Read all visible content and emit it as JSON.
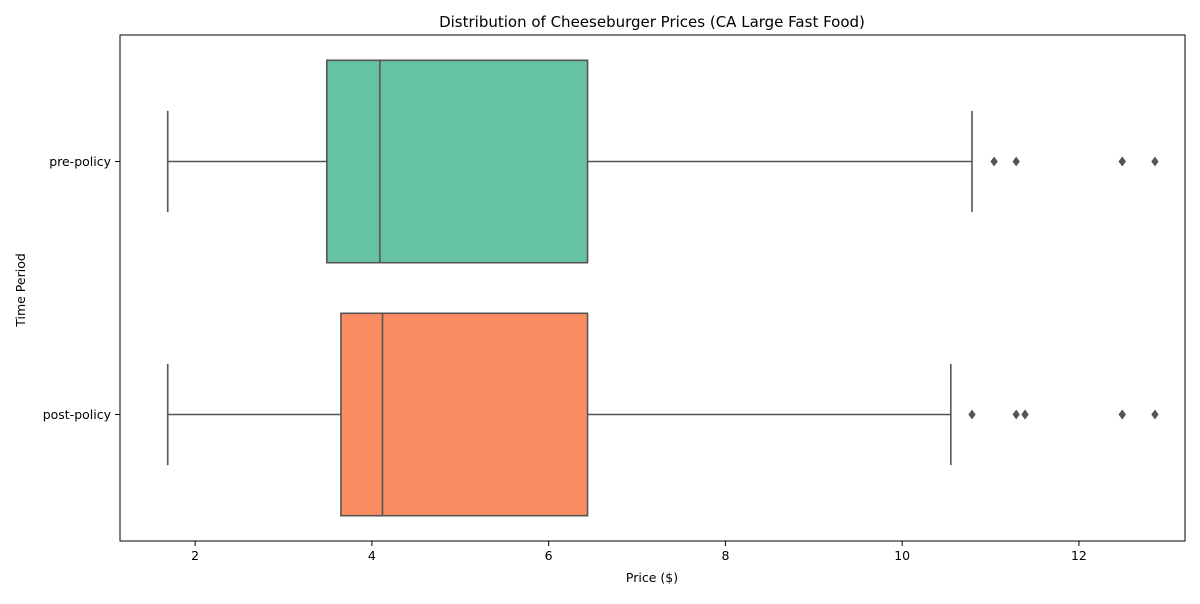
{
  "chart_data": {
    "type": "boxplot",
    "orientation": "horizontal",
    "title": "Distribution of Cheeseburger Prices (CA Large Fast Food)",
    "xlabel": "Price ($)",
    "ylabel": "Time Period",
    "xlim": [
      1.15,
      13.2
    ],
    "xticks": [
      2,
      4,
      6,
      8,
      10,
      12
    ],
    "grid": false,
    "legend": "none",
    "categories": [
      "pre-policy",
      "post-policy"
    ],
    "boxes": [
      {
        "category": "pre-policy",
        "whisker_low": 1.69,
        "q1": 3.49,
        "median": 4.09,
        "q3": 6.44,
        "whisker_high": 10.79,
        "outliers": [
          11.04,
          11.29,
          12.49,
          12.49,
          12.86
        ],
        "color": "#66c2a5"
      },
      {
        "category": "post-policy",
        "whisker_low": 1.69,
        "q1": 3.65,
        "median": 4.12,
        "q3": 6.44,
        "whisker_high": 10.55,
        "outliers": [
          10.79,
          11.29,
          11.39,
          11.39,
          12.49,
          12.49,
          12.86
        ],
        "color": "#fc8d62"
      }
    ],
    "line_color": "#555555"
  }
}
